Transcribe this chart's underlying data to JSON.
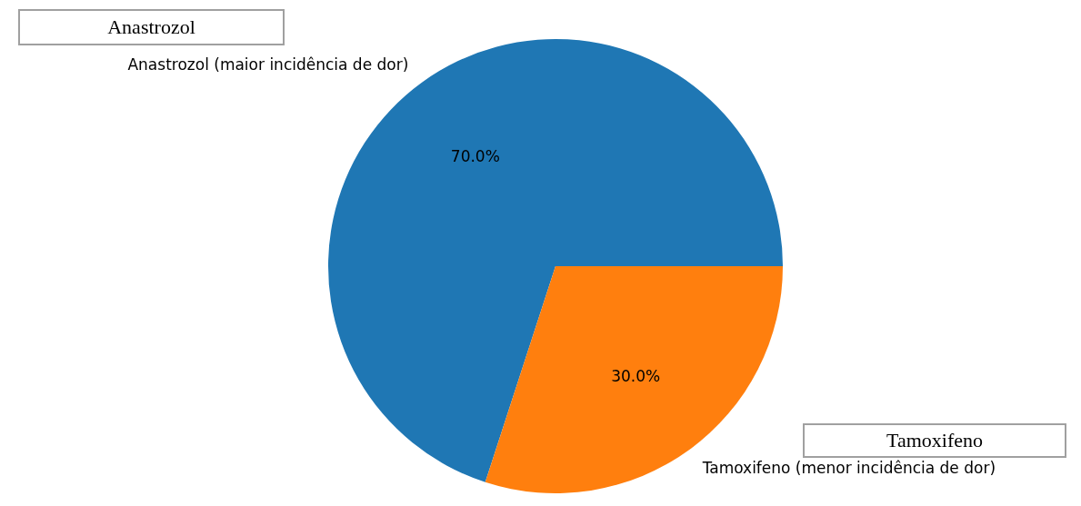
{
  "chart_data": {
    "type": "pie",
    "categories": [
      "Anastrozol (maior incidência de dor)",
      "Tamoxifeno (menor incidência de dor)"
    ],
    "values": [
      70,
      30
    ],
    "colors": [
      "#1f77b4",
      "#ff7f0e"
    ],
    "value_labels": [
      "70.0%",
      "30.0%"
    ],
    "annotations": [
      "Anastrozol",
      "Tamoxifeno"
    ]
  }
}
